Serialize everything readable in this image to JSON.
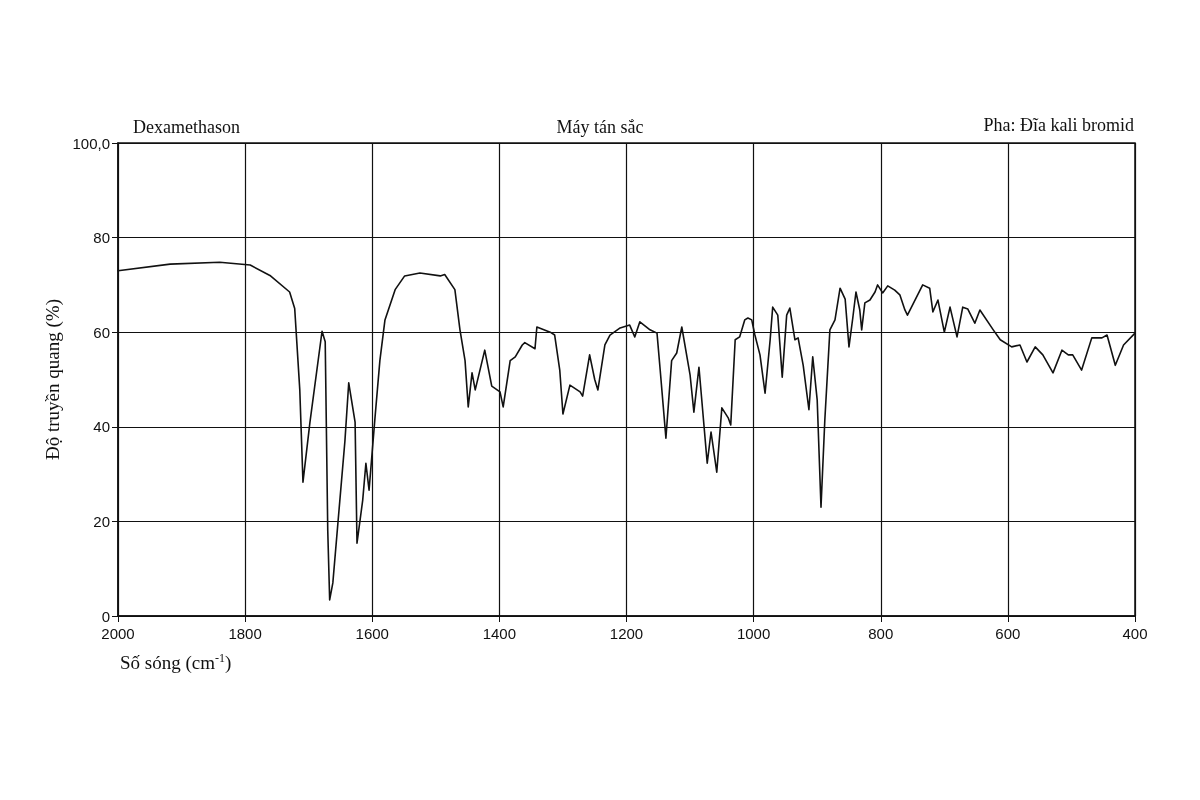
{
  "chart_data": {
    "type": "line",
    "title": "Dexamethason",
    "subtitle": "Máy tán sắc",
    "annotations": [
      "Pha: Đĩa kali bromid"
    ],
    "xlabel": "Số sóng (cm$^{-1}$)",
    "ylabel": "Độ truyền quang (%)",
    "xlim": [
      2000,
      400
    ],
    "xticks": [
      2000,
      1800,
      1600,
      1400,
      1200,
      1000,
      800,
      600,
      400
    ],
    "ylim": [
      0,
      100
    ],
    "yticks": [
      0,
      20,
      40,
      60,
      80,
      {
        "value": 100,
        "label": "100,0"
      }
    ],
    "grid": true,
    "marker": "none",
    "line_style": "solid",
    "series": [
      {
        "color": "#111111",
        "x": [
          2000,
          1918,
          1840,
          1792,
          1761,
          1730,
          1722,
          1714,
          1709,
          1698,
          1679,
          1674,
          1670,
          1667,
          1662,
          1654,
          1643,
          1637,
          1627,
          1624,
          1615,
          1610,
          1605,
          1596,
          1588,
          1580,
          1564,
          1549,
          1525,
          1493,
          1486,
          1470,
          1462,
          1454,
          1449,
          1443,
          1438,
          1423,
          1412,
          1399,
          1394,
          1383,
          1375,
          1364,
          1360,
          1344,
          1341,
          1320,
          1313,
          1305,
          1300,
          1289,
          1273,
          1269,
          1258,
          1250,
          1245,
          1234,
          1226,
          1210,
          1195,
          1187,
          1179,
          1163,
          1152,
          1147,
          1138,
          1129,
          1121,
          1113,
          1100,
          1094,
          1086,
          1073,
          1067,
          1058,
          1050,
          1040,
          1036,
          1029,
          1022,
          1014,
          1009,
          1003,
          998,
          990,
          982,
          974,
          970,
          962,
          955,
          948,
          943,
          935,
          930,
          922,
          913,
          907,
          900,
          894,
          888,
          880,
          872,
          864,
          856,
          850,
          844,
          839,
          833,
          830,
          825,
          817,
          809,
          805,
          797,
          789,
          778,
          770,
          762,
          758,
          734,
          723,
          718,
          710,
          700,
          691,
          680,
          671,
          663,
          652,
          644,
          623,
          612,
          594,
          581,
          570,
          557,
          545,
          529,
          515,
          505,
          498,
          484,
          468,
          452,
          444,
          431,
          418,
          400
        ],
        "values": [
          73,
          74.4,
          74.8,
          74.2,
          72,
          68.5,
          65,
          47.8,
          28.3,
          41,
          60.2,
          58,
          18,
          3.4,
          7,
          19.7,
          37,
          49.3,
          41,
          15.4,
          24.5,
          32.3,
          26.6,
          41.4,
          54,
          62.6,
          69,
          71.9,
          72.5,
          71.9,
          72.2,
          69,
          60.5,
          54,
          44.2,
          51.4,
          47.8,
          56.2,
          48.6,
          47.4,
          44.2,
          54,
          54.8,
          57.3,
          57.8,
          56.5,
          61.1,
          60,
          59.4,
          52,
          42.7,
          48.8,
          47.4,
          46.5,
          55.2,
          50,
          47.8,
          57.3,
          59.4,
          60.9,
          61.5,
          59,
          62.2,
          60.5,
          59.8,
          52,
          37.6,
          54,
          55.6,
          61.1,
          51,
          43.1,
          52.6,
          32.3,
          38.9,
          30.4,
          44,
          41.9,
          40.4,
          58.4,
          59,
          62.6,
          63,
          62.6,
          59.4,
          55.2,
          47.1,
          58.4,
          65.3,
          63.6,
          50.5,
          63.6,
          65.1,
          58.4,
          58.8,
          53,
          43.6,
          54.8,
          45.7,
          23,
          41.4,
          60.5,
          62.6,
          69.3,
          67,
          56.9,
          63,
          68.5,
          64.7,
          60.5,
          66.2,
          66.8,
          68.5,
          70,
          68.3,
          69.8,
          68.9,
          67.9,
          64.7,
          63.6,
          70,
          69.3,
          64.3,
          66.8,
          60,
          65.3,
          59,
          65.3,
          64.9,
          61.9,
          64.7,
          60.5,
          58.4,
          56.9,
          57.3,
          53.7,
          56.9,
          55.2,
          51.4,
          56.2,
          55.2,
          55.2,
          52,
          58.8,
          58.8,
          59.4,
          53,
          57.3,
          59.8
        ]
      }
    ]
  }
}
